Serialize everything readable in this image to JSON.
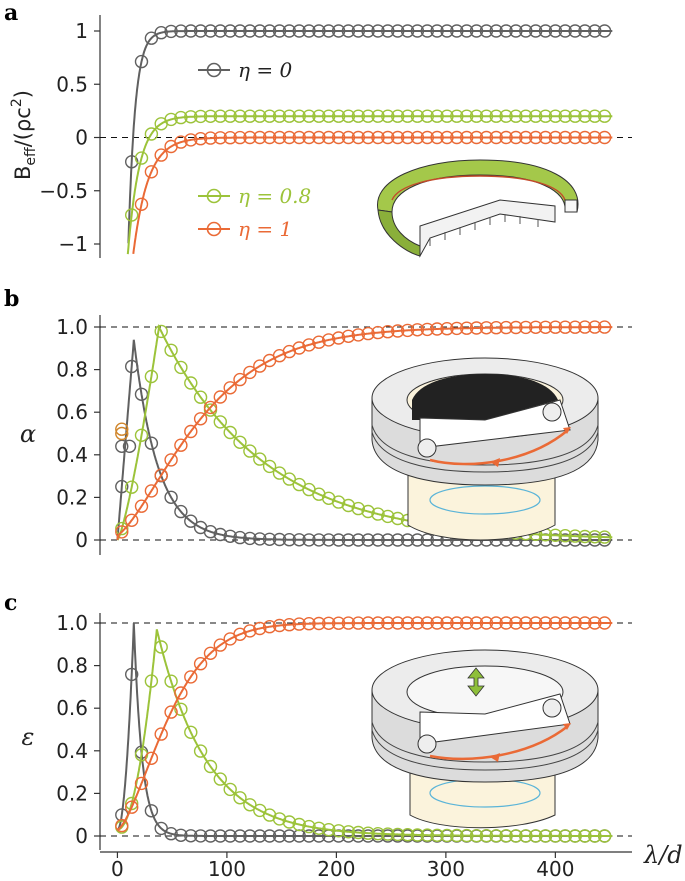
{
  "chart_data": [
    {
      "panel": "a",
      "type": "line",
      "ylabel": "B_eff/(ρc²)",
      "ylim": [
        -1.15,
        1.15
      ],
      "yticks": [
        1,
        0.5,
        0,
        -0.5,
        -1
      ],
      "ytick_labels": [
        "1",
        "0.5",
        "0",
        "−0.5",
        "−1"
      ],
      "xlim": [
        -15,
        470
      ],
      "reference_lines": [
        0
      ],
      "legend": [
        {
          "label": "η = 0",
          "color": "#606060",
          "position": "top-center"
        },
        {
          "label": "η = 0.8",
          "color": "#9cc33a",
          "position": "lower-left"
        },
        {
          "label": "η = 1",
          "color": "#ea6a36",
          "position": "lower-left"
        }
      ],
      "series": [
        {
          "name": "η = 0",
          "color": "#606060",
          "curve": "1 - 10*exp(-x/13)",
          "marker_ys": [
            {
              "x": 7,
              "y": -0.7
            },
            {
              "x": 14,
              "y": 0.42
            }
          ]
        },
        {
          "name": "η = 0.8",
          "color": "#9cc33a",
          "curve": "0.2 - 3*exp(-x/13)",
          "marker_ys": []
        },
        {
          "name": "η = 1",
          "color": "#ea6a36",
          "curve": "-2.5*exp(-x/16)",
          "marker_ys": [
            {
              "x": 18,
              "y": -0.9
            }
          ]
        }
      ],
      "marker_spacing": 9,
      "marker_x_max": 452
    },
    {
      "panel": "b",
      "type": "line",
      "ylabel": "α",
      "ylim": [
        -0.03,
        1.05
      ],
      "yticks": [
        0,
        0.2,
        0.4,
        0.6,
        0.8,
        1.0
      ],
      "ytick_labels": [
        "0",
        "0.2",
        "0.4",
        "0.6",
        "0.8",
        "1.0"
      ],
      "xlim": [
        -15,
        470
      ],
      "reference_lines": [
        0,
        1
      ],
      "series": [
        {
          "name": "η = 0",
          "color": "#606060",
          "peak": 15,
          "peak_value": 0.94
        },
        {
          "name": "η = 0.8",
          "color": "#9cc33a",
          "peak": 38,
          "peak_value": 1.0
        },
        {
          "name": "η = 1",
          "color": "#ea6a36",
          "curve": "saturating",
          "value_at_450": 0.995
        }
      ],
      "extra_markers": [
        {
          "x": 4,
          "y": 0.44,
          "color": "#606060"
        },
        {
          "x": 11,
          "y": 0.44,
          "color": "#606060"
        },
        {
          "x": 4,
          "y": 0.52,
          "color": "#d0852a"
        },
        {
          "x": 4,
          "y": 0.5,
          "color": "#d0852a"
        }
      ]
    },
    {
      "panel": "c",
      "type": "line",
      "ylabel": "ε",
      "xlabel": "λ/d",
      "ylim": [
        -0.03,
        1.05
      ],
      "yticks": [
        0,
        0.2,
        0.4,
        0.6,
        0.8,
        1.0
      ],
      "ytick_labels": [
        "0",
        "0.2",
        "0.4",
        "0.6",
        "0.8",
        "1.0"
      ],
      "xticks": [
        0,
        100,
        200,
        300,
        400
      ],
      "xtick_labels": [
        "0",
        "100",
        "200",
        "300",
        "400"
      ],
      "xlim": [
        -15,
        470
      ],
      "reference_lines": [
        0,
        1
      ],
      "series": [
        {
          "name": "η = 0",
          "color": "#606060",
          "peak": 16,
          "peak_value": 1.0
        },
        {
          "name": "η = 0.8",
          "color": "#9cc33a",
          "peak": 36,
          "peak_value": 0.97
        },
        {
          "name": "η = 1",
          "color": "#ea6a36",
          "curve": "saturating",
          "value_at_450": 0.995
        }
      ]
    }
  ],
  "panel_letters": [
    "a",
    "b",
    "c"
  ],
  "legend": {
    "eta0": "η = 0",
    "eta08": "η = 0.8",
    "eta1": "η = 1"
  },
  "axes": {
    "a_ylabel_main": "B",
    "a_ylabel_sub": "eff",
    "a_ylabel_rest": "/(ρc",
    "a_ylabel_sup": "2",
    "a_ylabel_end": ")",
    "b_ylabel": "α",
    "c_ylabel": "ε",
    "c_xlabel": "λ/d"
  },
  "colors": {
    "gray": "#606060",
    "green": "#9cc33a",
    "orange": "#ea6a36"
  }
}
